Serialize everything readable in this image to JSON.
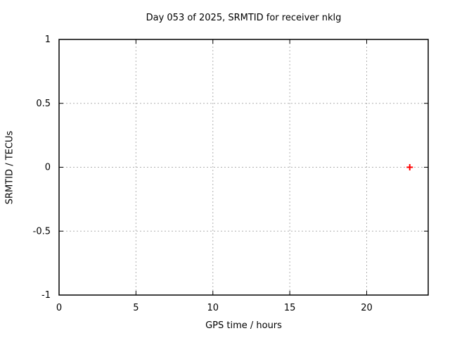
{
  "chart_data": {
    "type": "scatter",
    "title": "Day 053 of 2025, SRMTID for receiver nklg",
    "xlabel": "GPS time / hours",
    "ylabel": "SRMTID / TECUs",
    "xlim": [
      0,
      24
    ],
    "ylim": [
      -1,
      1
    ],
    "xticks": [
      {
        "value": 0,
        "label": "0"
      },
      {
        "value": 5,
        "label": "5"
      },
      {
        "value": 10,
        "label": "10"
      },
      {
        "value": 15,
        "label": "15"
      },
      {
        "value": 20,
        "label": "20"
      }
    ],
    "yticks": [
      {
        "value": -1,
        "label": "-1"
      },
      {
        "value": -0.5,
        "label": "-0.5"
      },
      {
        "value": 0,
        "label": "0"
      },
      {
        "value": 0.5,
        "label": "0.5"
      },
      {
        "value": 1,
        "label": "1"
      }
    ],
    "grid": true,
    "legend_position": "none",
    "colors": {
      "marker": "#ff0000",
      "grid": "#b0b0b0",
      "axis": "#000000",
      "text": "#000000",
      "background": "#ffffff"
    },
    "series": [
      {
        "marker": "plus",
        "color": "#ff0000",
        "points": [
          {
            "x": 22.8,
            "y": 0.0
          }
        ]
      }
    ]
  }
}
